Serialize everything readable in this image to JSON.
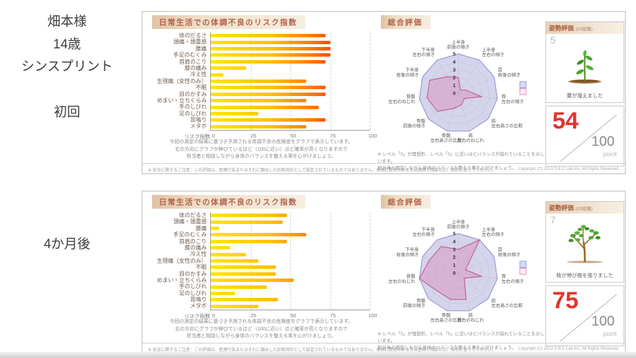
{
  "sidebar": {
    "name": "畑本様",
    "age": "14歳",
    "condition": "シンスプリント"
  },
  "shared": {
    "bar_title": "日常生活での体調不良のリスク指数",
    "bar_axis_label": "リスク指数",
    "bar_note_lines": [
      "今回の測定の結果に基づき予測される体調不良の危険度をグラフで表示しています。",
      "右の方向にグラフが伸びているほど（100に近い）ほど確率が高くなりますので",
      "担当者と相談しながら身体のバランスを整える事を心がけましょう。"
    ],
    "radar_title": "総合評価",
    "radar_note_lines": [
      "※ レベル「5」が理想形、レベル「0」に近いほどバランスが崩れていることを示しています。",
      "担当者と相談しながら身体のバランスを整える事を心がけましょう。"
    ],
    "posture_header": "姿勢評価",
    "posture_scale": "(10段階)",
    "score_denominator": "100",
    "score_unit": "point",
    "footer_note": "※ 安全に関するご注意：この評価は、医療行為またはそれに類似した診断目的として設定されているものではありません。身体に異常のある方は医師と相談の上、指示に従ってください。",
    "copyright": "Copyright (C) 2013 S.B.C Lab Inc. All Rights Reserved."
  },
  "sessions": [
    {
      "label": "初回",
      "posture_level": "5",
      "posture_caption": "葉が増えました",
      "plant_icon": "sprout-illustration",
      "score": "54"
    },
    {
      "label": "4か月後",
      "posture_level": "7",
      "posture_caption": "枝が伸び根を張りました",
      "plant_icon": "tree-illustration",
      "score": "75"
    }
  ],
  "chart_data": [
    {
      "type": "bar",
      "orientation": "horizontal",
      "session": "初回",
      "title": "日常生活での体調不良のリスク指数",
      "categories": [
        "体のだるさ",
        "頭痛・頭重感",
        "腰痛",
        "手足のむくみ",
        "首肩のこり",
        "膝の痛み",
        "冷え性",
        "生理痛（女性のみ）",
        "不眠",
        "目のかすみ",
        "めまい・立ちくらみ",
        "手のしびれ",
        "足のしびれ",
        "耳鳴り",
        "メタボ"
      ],
      "values": [
        72,
        75,
        75,
        75,
        72,
        22,
        8,
        60,
        72,
        72,
        60,
        68,
        30,
        72,
        60
      ],
      "xlabel": "リスク指数",
      "xlim": [
        0,
        100
      ],
      "xticks": [
        0,
        25,
        50,
        75,
        100
      ],
      "grid": "dashed-vertical",
      "bar_gradient": [
        "#ffe600",
        "#ffc000",
        "#ff7d00",
        "#e62000"
      ]
    },
    {
      "type": "radar",
      "session": "初回",
      "title": "総合評価",
      "categories": [
        "上半身 前後の傾き",
        "上半身 左右の傾き",
        "首 前後の傾き",
        "首 左右の傾き",
        "肩 左右高さの比較",
        "肩 左右のねじれ",
        "骨盤 左右高さの比較",
        "骨盤 前後の傾き",
        "骨盤 左右のねじれ",
        "下半身 前後の傾き",
        "下半身 左右の傾き"
      ],
      "values": [
        2,
        0.5,
        1,
        3,
        1,
        1.5,
        2,
        3.5,
        4,
        4,
        2.5
      ],
      "range": [
        0,
        5
      ],
      "rticks": [
        0,
        1,
        2,
        3,
        4,
        5
      ],
      "ideal_color": "#ccccea",
      "measured_color": "#c05f98"
    },
    {
      "type": "bar",
      "orientation": "horizontal",
      "session": "4か月後",
      "title": "日常生活での体調不良のリスク指数",
      "categories": [
        "体のだるさ",
        "頭痛・頭重感",
        "腰痛",
        "手足のむくみ",
        "首肩のこり",
        "膝の痛み",
        "冷え性",
        "生理痛（女性のみ）",
        "不眠",
        "目のかすみ",
        "めまい・立ちくらみ",
        "手のしびれ",
        "足のしびれ",
        "耳鳴り",
        "メタボ"
      ],
      "values": [
        48,
        45,
        5,
        60,
        48,
        12,
        22,
        30,
        41,
        41,
        52,
        35,
        15,
        42,
        30
      ],
      "xlabel": "リスク指数",
      "xlim": [
        0,
        100
      ],
      "xticks": [
        0,
        25,
        50,
        75,
        100
      ],
      "grid": "dashed-vertical",
      "bar_gradient": [
        "#ffe600",
        "#ffc000",
        "#ff7d00",
        "#e62000"
      ]
    },
    {
      "type": "radar",
      "session": "4か月後",
      "title": "総合評価",
      "categories": [
        "上半身 前後の傾き",
        "上半身 左右の傾き",
        "首 前後の傾き",
        "首 左右の傾き",
        "肩 左右高さの比較",
        "肩 左右のねじれ",
        "骨盤 左右高さの比較",
        "骨盤 前後の傾き",
        "骨盤 左右のねじれ",
        "下半身 前後の傾き",
        "下半身 左右の傾き"
      ],
      "values": [
        3,
        5,
        1,
        3,
        1,
        3.5,
        3.5,
        3.5,
        5,
        4,
        4
      ],
      "range": [
        0,
        5
      ],
      "rticks": [
        0,
        1,
        2,
        3,
        4,
        5
      ],
      "ideal_color": "#ccccea",
      "measured_color": "#c05f98"
    }
  ],
  "colors": {
    "score_red": "#e4332c",
    "title_text": "#b2614a",
    "title_bg": "#eadcc7",
    "radar_ideal_fill": "#ccccea",
    "radar_ideal_stroke": "#9a9ad0",
    "radar_measured_fill": "rgba(219,141,186,0.45)",
    "radar_measured_stroke": "#c05f98",
    "bar_yellow": "#ffe600",
    "bar_red": "#e62000"
  }
}
